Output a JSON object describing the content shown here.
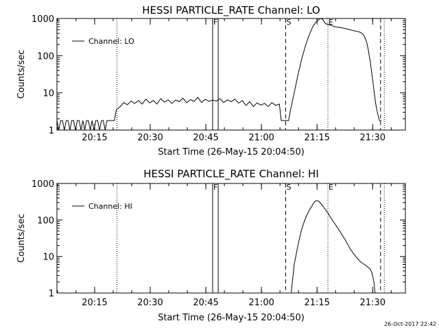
{
  "footer": {
    "timestamp": "26-Oct-2017 22:42"
  },
  "chart_data": [
    {
      "type": "line",
      "title": "HESSI PARTICLE_RATE Channel: LO",
      "xlabel": "Start Time (26-May-15 20:04:50)",
      "ylabel": "Counts/sec",
      "yscale": "log",
      "ylim": [
        1,
        1000
      ],
      "xlim_minutes_from_start": [
        0,
        94
      ],
      "x_tick_labels": [
        "20:15",
        "20:30",
        "20:45",
        "21:00",
        "21:15",
        "21:30"
      ],
      "x_tick_minutes_from_start": [
        10.17,
        25.17,
        40.17,
        55.17,
        70.17,
        85.17
      ],
      "y_tick_labels": [
        "1",
        "10",
        "100",
        "1000"
      ],
      "y_tick_values": [
        1,
        10,
        100,
        1000
      ],
      "legend": {
        "label": "Channel: LO",
        "position": "top-left"
      },
      "markers": [
        {
          "label": "",
          "minute": 16.2,
          "style": "dotted"
        },
        {
          "label": "F",
          "minute": 42.0,
          "style": "solid"
        },
        {
          "label": "",
          "minute": 43.5,
          "style": "solid"
        },
        {
          "label": "S",
          "minute": 61.7,
          "style": "dashed"
        },
        {
          "label": "E",
          "minute": 73.1,
          "style": "dotted"
        },
        {
          "label": "",
          "minute": 87.3,
          "style": "dashed"
        },
        {
          "label": "",
          "minute": 88.3,
          "style": "dotted"
        }
      ],
      "series": [
        {
          "x": [
            0,
            0.5,
            1.0,
            1.5,
            2.0,
            2.5,
            3.0,
            3.5,
            4.0,
            4.5,
            5.0,
            5.5,
            6.0,
            6.5,
            7.0,
            7.5,
            8.0,
            8.5,
            9.0,
            9.5,
            10.0,
            10.5,
            11.0,
            11.5,
            12.0,
            12.5,
            13.0,
            13.5,
            14.0,
            15.5,
            16.0,
            16.5,
            17.0,
            18.0,
            19.0,
            20.0,
            21.0,
            22.0,
            23.0,
            24.0,
            25.0,
            26.0,
            27.0,
            28.0,
            29.0,
            30.0,
            31.0,
            32.0,
            33.0,
            34.0,
            35.0,
            36.0,
            37.0,
            38.0,
            39.0,
            40.0,
            41.0,
            42.0,
            43.0,
            44.0,
            45.0,
            46.0,
            47.0,
            48.0,
            49.0,
            50.0,
            51.0,
            52.0,
            53.0,
            54.0,
            55.0,
            56.0,
            57.0,
            58.0,
            59.0,
            60.0,
            60.5,
            61.5,
            62.5,
            63.0,
            64.0,
            65.0,
            66.0,
            67.0,
            68.0,
            69.0,
            70.0,
            71.0,
            71.7,
            72.0,
            72.5,
            73.0,
            74.0,
            75.0,
            76.0,
            77.0,
            78.0,
            79.0,
            80.0,
            81.0,
            82.0,
            82.5,
            83.0,
            83.5,
            84.0,
            84.5,
            85.0,
            85.5,
            86.0,
            86.5,
            87.0,
            87.5
          ],
          "y": [
            1.8,
            1,
            1.8,
            1.8,
            1,
            1.8,
            1.8,
            1,
            1.8,
            1.8,
            1,
            1.8,
            1.8,
            1,
            1.8,
            1,
            1.8,
            1.8,
            1,
            1.8,
            1,
            1.8,
            1.8,
            1,
            1.8,
            1.8,
            1,
            1.8,
            1.8,
            1.8,
            3.5,
            3.8,
            4.2,
            5.5,
            4.8,
            6.0,
            5.2,
            6.2,
            5.0,
            6.8,
            5.4,
            6.2,
            5.0,
            7.0,
            5.6,
            6.5,
            5.2,
            6.4,
            5.8,
            7.2,
            5.4,
            6.6,
            5.9,
            7.6,
            5.5,
            6.7,
            5.9,
            6.4,
            6.0,
            7.0,
            5.5,
            6.5,
            5.8,
            6.8,
            5.3,
            6.2,
            4.6,
            5.8,
            4.3,
            5.4,
            4.7,
            5.2,
            4.3,
            5.5,
            4.6,
            5.0,
            1.8,
            1.8,
            1.8,
            3.5,
            10,
            30,
            80,
            180,
            350,
            600,
            830,
            1000,
            950,
            840,
            720,
            700,
            650,
            600,
            580,
            560,
            530,
            500,
            470,
            450,
            420,
            380,
            320,
            240,
            140,
            70,
            30,
            12,
            5,
            2.8,
            1.8,
            1.8
          ]
        }
      ]
    },
    {
      "type": "line",
      "title": "HESSI PARTICLE_RATE Channel: HI",
      "xlabel": "Start Time (26-May-15 20:04:50)",
      "ylabel": "Counts/sec",
      "yscale": "log",
      "ylim": [
        1,
        1000
      ],
      "xlim_minutes_from_start": [
        0,
        94
      ],
      "x_tick_labels": [
        "20:15",
        "20:30",
        "20:45",
        "21:00",
        "21:15",
        "21:30"
      ],
      "x_tick_minutes_from_start": [
        10.17,
        25.17,
        40.17,
        55.17,
        70.17,
        85.17
      ],
      "y_tick_labels": [
        "1",
        "10",
        "100",
        "1000"
      ],
      "y_tick_values": [
        1,
        10,
        100,
        1000
      ],
      "legend": {
        "label": "Channel: HI",
        "position": "top-left"
      },
      "markers": [
        {
          "label": "",
          "minute": 16.2,
          "style": "dotted"
        },
        {
          "label": "F",
          "minute": 42.0,
          "style": "solid"
        },
        {
          "label": "",
          "minute": 43.5,
          "style": "solid"
        },
        {
          "label": "S",
          "minute": 61.7,
          "style": "dashed"
        },
        {
          "label": "E",
          "minute": 73.1,
          "style": "dotted"
        },
        {
          "label": "",
          "minute": 87.3,
          "style": "dashed"
        },
        {
          "label": "",
          "minute": 88.3,
          "style": "dotted"
        }
      ],
      "series": [
        {
          "x": [
            63.2,
            63.5,
            64.0,
            65.0,
            66.0,
            67.0,
            68.0,
            69.0,
            69.5,
            70.0,
            70.5,
            71.0,
            72.0,
            73.0,
            74.0,
            75.0,
            76.0,
            77.0,
            78.0,
            79.0,
            80.0,
            81.0,
            82.0,
            83.0,
            84.0,
            84.5,
            85.0,
            85.5,
            85.8
          ],
          "y": [
            1,
            2,
            6,
            20,
            55,
            110,
            180,
            260,
            320,
            340,
            330,
            300,
            220,
            160,
            110,
            78,
            55,
            38,
            26,
            17,
            12,
            9,
            7,
            6,
            5,
            4.5,
            3.5,
            2,
            1
          ]
        }
      ]
    }
  ]
}
